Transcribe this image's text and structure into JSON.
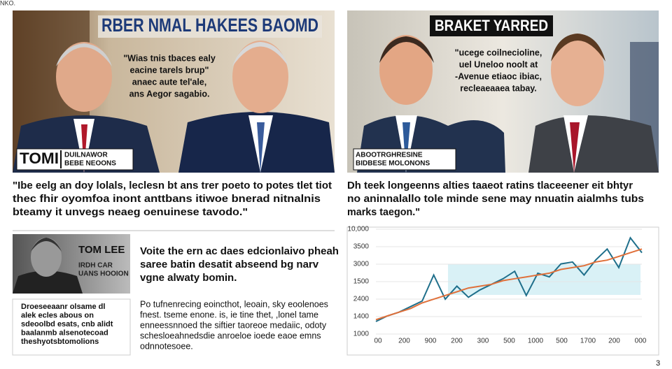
{
  "corner_label": "NKO.",
  "feature_left": {
    "headline": "RBER NMAL HAKEES BAOMD",
    "quote": [
      "\"Wias tnis tbaces ealy",
      "eacine tarels brup\"",
      "anaec aute tel'ale,",
      "ans Aegor sagabio."
    ],
    "caption_name": "TOMI",
    "caption_role": [
      "DUILNAWOR",
      "BEBE NEOONS"
    ]
  },
  "feature_right": {
    "headline": "BRAKET YARRED",
    "quote": [
      "\"ucege coilnecioline,",
      "uel Uneloo noolt at",
      "-Avenue etiaoc ibiac,",
      "recleaeaaea tabay."
    ],
    "caption": [
      "ABOOTRGHRESINE",
      "BIDBESE MOLONONS"
    ]
  },
  "pull_quote_left": [
    "\"Ibe eelg an doy lolals, leclesn bt ans trer poeto to potes tlet tiot",
    "thec fhir oyomfoa inont anttbans itiwoe bnerad nitnalnis",
    "bteamy it unvegs neaeg oenuinese tavodo.\""
  ],
  "pull_quote_right": [
    "Dh teek longeenns alties taaeot ratins tlaceeener eit bhtyr",
    "no aninnalallo tole minde sene may nnuatin aialmhs tubs",
    "marks taegon.\""
  ],
  "profile": {
    "name": "TOM LEE",
    "role": [
      "IRDH CAR",
      "UANS HOOION"
    ]
  },
  "profile_text": [
    "Voite the ern ac daes edcionlaivo pheah",
    "saree batin desatit abseend bg narv",
    "vgne alwaty bomin."
  ],
  "sidebar_box": [
    "Droeseeaanr olsame dl",
    "alek ecles abous on",
    "sdeoolbd esats, cnb alidt",
    "baalanmb alsenotecoad",
    "theshyotsbtomolions"
  ],
  "body_text": [
    "Po tufnenrecing eoincthot, leoain, sky eoolenoes",
    "fnest. tseme enone. is, ie tine thet, ,lonel tame",
    "enneessnnoed the siftier taoreoe medaiic, odoty",
    "schesloeahnedsdie anroeloe ioede eaoe emns",
    "odnnotesoee."
  ],
  "chart": {
    "type": "line",
    "y_labels": [
      "10,000",
      "3500",
      "3000",
      "1500",
      "2400",
      "1400",
      "1000"
    ],
    "x_labels": [
      "00",
      "200",
      "900",
      "200",
      "300",
      "500",
      "1000",
      "500",
      "1700",
      "200",
      "000"
    ],
    "ylim": [
      0,
      100
    ],
    "series": [
      {
        "color": "#1f6f8b",
        "values": [
          6,
          12,
          16,
          22,
          28,
          56,
          30,
          44,
          32,
          40,
          46,
          52,
          60,
          34,
          58,
          54,
          68,
          70,
          56,
          72,
          84,
          64,
          96,
          80
        ]
      },
      {
        "color": "#e0703a",
        "values": [
          8,
          12,
          16,
          20,
          26,
          30,
          34,
          38,
          42,
          44,
          46,
          50,
          52,
          54,
          56,
          58,
          62,
          64,
          66,
          70,
          72,
          76,
          80,
          84
        ]
      }
    ]
  },
  "page_number": "3"
}
